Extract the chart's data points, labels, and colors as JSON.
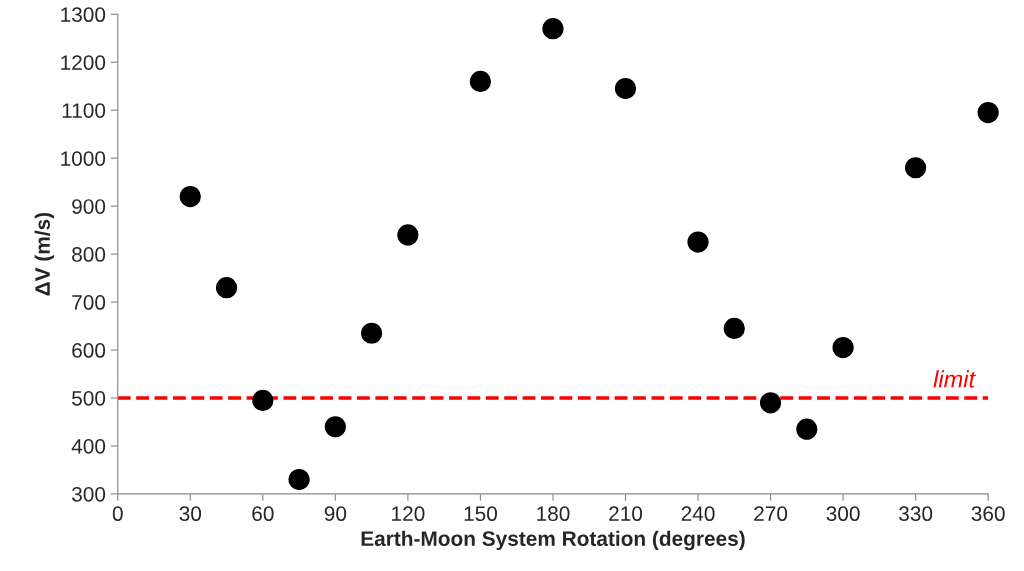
{
  "chart_data": {
    "type": "scatter",
    "xlabel": "Earth-Moon System Rotation (degrees)",
    "ylabel": "ΔV (m/s)",
    "x": [
      30,
      45,
      60,
      75,
      90,
      105,
      120,
      150,
      180,
      210,
      240,
      255,
      270,
      285,
      300,
      330,
      360
    ],
    "series": [
      {
        "color": "#000000",
        "values": [
          920,
          730,
          495,
          330,
          440,
          635,
          840,
          1160,
          1270,
          1145,
          825,
          645,
          490,
          435,
          605,
          980,
          1095
        ]
      }
    ],
    "xlim": [
      0,
      360
    ],
    "xticks": [
      0,
      30,
      60,
      90,
      120,
      150,
      180,
      210,
      240,
      270,
      300,
      330,
      360
    ],
    "ylim": [
      300,
      1300
    ],
    "yticks": [
      300,
      400,
      500,
      600,
      700,
      800,
      900,
      1000,
      1100,
      1200,
      1300
    ],
    "ref_lines": [
      {
        "axis": "y",
        "value": 500,
        "label": "limit",
        "color": "#ff0000",
        "line_style": "dashed"
      }
    ],
    "grid": false,
    "marker": "circle"
  }
}
